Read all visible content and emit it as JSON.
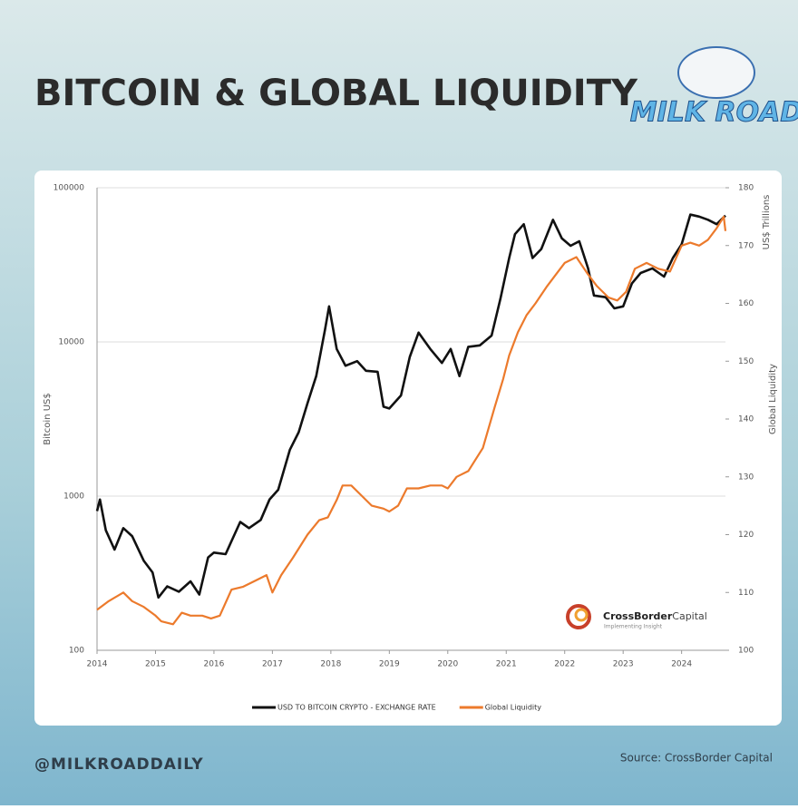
{
  "header": {
    "title": "BITCOIN & GLOBAL LIQUIDITY",
    "logo": "MILK ROAD"
  },
  "chart_data": {
    "type": "line",
    "xlim": [
      2014,
      2024.75
    ],
    "xticks": [
      2014,
      2015,
      2016,
      2017,
      2018,
      2019,
      2020,
      2021,
      2022,
      2023,
      2024
    ],
    "ylim": [
      100,
      100000
    ],
    "yticks": [
      100,
      1000,
      10000,
      100000
    ],
    "ylog": true,
    "ylabel": "Bitcoin US$",
    "y2lim": [
      100,
      180
    ],
    "y2ticks": [
      100,
      110,
      120,
      130,
      140,
      150,
      160,
      170,
      180
    ],
    "y2label": "Global Liquidity",
    "y2unit": "US$ Trillions",
    "grid": true,
    "legend": "bottom",
    "watermark": {
      "brand": "CrossBorder",
      "brand2": "Capital",
      "tagline": "Implementing Insight"
    },
    "series": [
      {
        "name": "USD TO BITCOIN CRYPTO - EXCHANGE RATE",
        "color": "#111111",
        "x": [
          2014.0,
          2014.05,
          2014.15,
          2014.3,
          2014.45,
          2014.6,
          2014.8,
          2014.95,
          2015.05,
          2015.2,
          2015.4,
          2015.6,
          2015.75,
          2015.9,
          2016.0,
          2016.2,
          2016.45,
          2016.6,
          2016.8,
          2016.95,
          2017.1,
          2017.3,
          2017.45,
          2017.6,
          2017.75,
          2017.9,
          2017.97,
          2018.1,
          2018.25,
          2018.45,
          2018.6,
          2018.8,
          2018.9,
          2019.0,
          2019.2,
          2019.35,
          2019.5,
          2019.7,
          2019.9,
          2020.05,
          2020.2,
          2020.35,
          2020.55,
          2020.75,
          2020.9,
          2021.05,
          2021.15,
          2021.3,
          2021.45,
          2021.6,
          2021.8,
          2021.95,
          2022.1,
          2022.25,
          2022.4,
          2022.5,
          2022.7,
          2022.85,
          2023.0,
          2023.15,
          2023.3,
          2023.5,
          2023.7,
          2023.85,
          2024.0,
          2024.15,
          2024.3,
          2024.45,
          2024.6,
          2024.75
        ],
        "values": [
          800,
          950,
          600,
          450,
          620,
          550,
          380,
          320,
          220,
          260,
          240,
          280,
          230,
          400,
          430,
          420,
          680,
          620,
          700,
          950,
          1100,
          2000,
          2600,
          4000,
          6000,
          12000,
          17000,
          9000,
          7000,
          7500,
          6500,
          6400,
          3800,
          3700,
          4500,
          8000,
          11500,
          9000,
          7300,
          9000,
          6000,
          9300,
          9500,
          11000,
          19000,
          35000,
          50000,
          58000,
          35000,
          40000,
          62000,
          47000,
          42000,
          45000,
          30000,
          20000,
          19500,
          16500,
          17000,
          24000,
          28000,
          30000,
          26500,
          35000,
          43000,
          67000,
          65000,
          62000,
          58000,
          66000
        ]
      },
      {
        "name": "Global Liquidity",
        "color": "#ec7a2c",
        "axis": "y2",
        "x": [
          2014.0,
          2014.2,
          2014.45,
          2014.6,
          2014.8,
          2015.0,
          2015.1,
          2015.3,
          2015.45,
          2015.6,
          2015.8,
          2015.95,
          2016.1,
          2016.3,
          2016.5,
          2016.7,
          2016.9,
          2017.0,
          2017.15,
          2017.35,
          2017.6,
          2017.8,
          2017.95,
          2018.1,
          2018.2,
          2018.35,
          2018.5,
          2018.7,
          2018.9,
          2019.0,
          2019.15,
          2019.3,
          2019.5,
          2019.7,
          2019.9,
          2020.0,
          2020.15,
          2020.35,
          2020.6,
          2020.8,
          2020.95,
          2021.05,
          2021.2,
          2021.35,
          2021.5,
          2021.7,
          2021.85,
          2022.0,
          2022.2,
          2022.4,
          2022.55,
          2022.75,
          2022.9,
          2023.05,
          2023.2,
          2023.4,
          2023.6,
          2023.8,
          2024.0,
          2024.15,
          2024.3,
          2024.45,
          2024.6,
          2024.72,
          2024.75
        ],
        "values": [
          107,
          108.5,
          110,
          108.5,
          107.5,
          106,
          105,
          104.5,
          106.5,
          106,
          106,
          105.5,
          106,
          110.5,
          111,
          112,
          113,
          110,
          113,
          116,
          120,
          122.5,
          123,
          126,
          128.5,
          128.5,
          127,
          125,
          124.5,
          124,
          125,
          128,
          128,
          128.5,
          128.5,
          128,
          130,
          131,
          135,
          142,
          147,
          151,
          155,
          158,
          160,
          163,
          165,
          167,
          168,
          165,
          163,
          161,
          160.5,
          162,
          166,
          167,
          166,
          165.5,
          170,
          170.5,
          170,
          171,
          173,
          175,
          172.5
        ]
      }
    ]
  },
  "footer": {
    "handle": "@MILKROADDAILY",
    "source": "Source: CrossBorder Capital"
  }
}
